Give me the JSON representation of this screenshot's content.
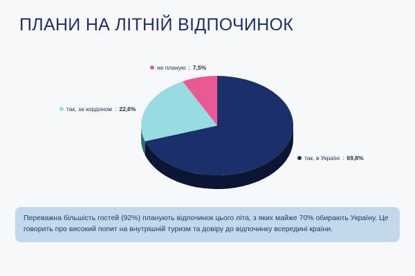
{
  "title": "ПЛАНИ НА ЛІТНІЙ ВІДПОЧИНОК",
  "chart_data": {
    "type": "pie",
    "title": "ПЛАНИ НА ЛІТНІЙ ВІДПОЧИНОК",
    "style": "3d",
    "slices": [
      {
        "label": "так, в Україні",
        "value": 69.8,
        "display": "69,8%",
        "color": "#1b2f6a",
        "side_color": "#0c1533",
        "legend_color": "#1b2f6a"
      },
      {
        "label": "так, за кордоном",
        "value": 22.6,
        "display": "22,6%",
        "color": "#98dbe0",
        "side_color": "#2f6c73",
        "legend_color": "#98dbe0"
      },
      {
        "label": "не планую",
        "value": 7.5,
        "display": "7,5%",
        "color": "#ea5a92",
        "side_color": "#8e2a52",
        "legend_color": "#ea5a92"
      }
    ]
  },
  "note": "Переважна більшість гостей (92%) планують відпочинок цього літа, з яких майже 70% обирають Україну. Це говорить про високий попит на внутрішній туризм та довіру до відпочинку всередині країни."
}
